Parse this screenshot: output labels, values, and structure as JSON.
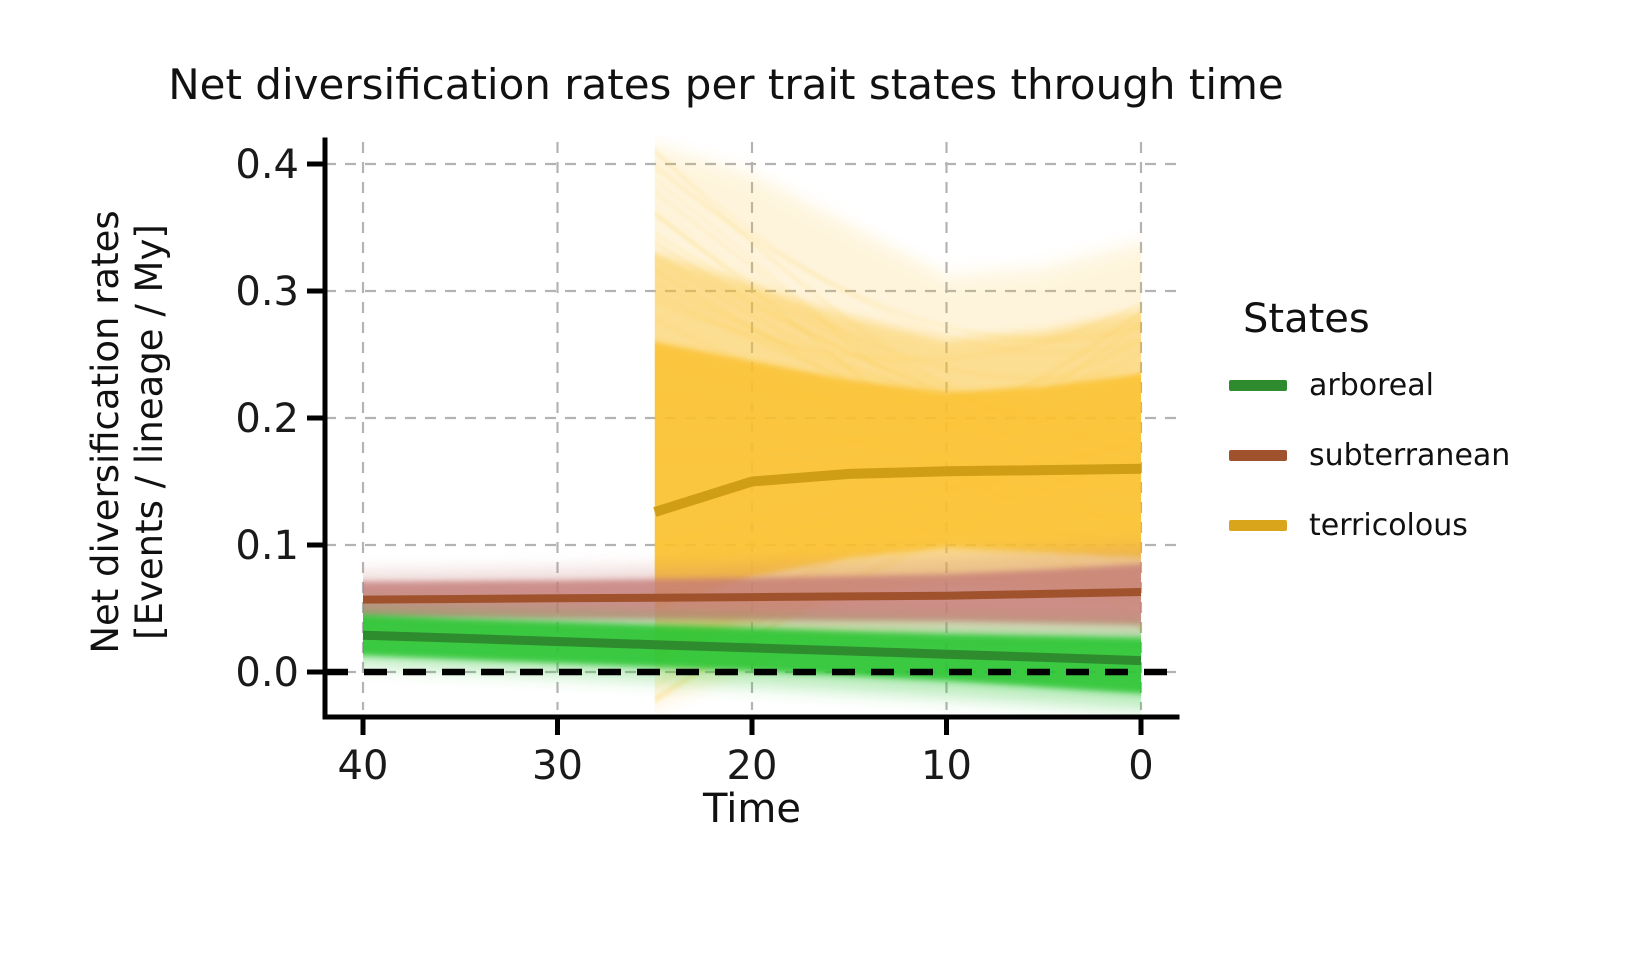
{
  "chart_data": {
    "type": "line",
    "title": "Net diversification rates per trait states through time",
    "xlabel": "Time",
    "ylabel": "Net diversification rates [Events / lineage / My]",
    "ylabel_lines": [
      "Net diversification rates",
      "[Events / lineage / My]"
    ],
    "x_axis": {
      "ticks": [
        40,
        30,
        20,
        10,
        0
      ],
      "tick_labels": [
        "40",
        "30",
        "20",
        "10",
        "0"
      ],
      "range": [
        40,
        0
      ],
      "reversed": true
    },
    "y_axis": {
      "ticks": [
        0.0,
        0.1,
        0.2,
        0.3,
        0.4
      ],
      "tick_labels": [
        "0.0",
        "0.1",
        "0.2",
        "0.3",
        "0.4"
      ],
      "range": [
        -0.035,
        0.419
      ]
    },
    "grid": {
      "show": true,
      "style": "dashed",
      "color": "#b3b3b3"
    },
    "zero_line": {
      "y": 0.0,
      "style": "dashed",
      "color": "#000000"
    },
    "legend": {
      "title": "States",
      "position": "right",
      "entries": [
        {
          "label": "arboreal",
          "color": "#2e8b2e"
        },
        {
          "label": "subterranean",
          "color": "#a0522d"
        },
        {
          "label": "terricolous",
          "color": "#d9a51b"
        }
      ]
    },
    "series": [
      {
        "name": "arboreal",
        "line_color": "#2e8b2e",
        "band_color": "#29c531",
        "line_width": 9,
        "x": [
          40,
          35,
          30,
          25,
          20,
          15,
          10,
          5,
          0
        ],
        "median": [
          0.029,
          0.0265,
          0.024,
          0.0215,
          0.019,
          0.0165,
          0.014,
          0.0115,
          0.009
        ],
        "bands": [
          {
            "level": "outer",
            "opacity": 0.35,
            "blur": "heavy",
            "low": [
              0.006,
              0.002,
              -0.002,
              -0.006,
              -0.01,
              -0.0145,
              -0.019,
              -0.024,
              -0.029
            ],
            "high": [
              0.051,
              0.048,
              0.0455,
              0.043,
              0.041,
              0.039,
              0.0375,
              0.036,
              0.035
            ]
          },
          {
            "level": "inner",
            "opacity": 0.88,
            "blur": "soft",
            "low": [
              0.013,
              0.01,
              0.007,
              0.004,
              0.001,
              -0.003,
              -0.007,
              -0.012,
              -0.017
            ],
            "high": [
              0.045,
              0.042,
              0.0395,
              0.037,
              0.0345,
              0.032,
              0.03,
              0.0285,
              0.027
            ]
          }
        ]
      },
      {
        "name": "subterranean",
        "line_color": "#a0522d",
        "band_color": "#c47b77",
        "line_width": 8,
        "x": [
          40,
          35,
          30,
          25,
          20,
          15,
          10,
          5,
          0
        ],
        "median": [
          0.057,
          0.0575,
          0.058,
          0.0585,
          0.059,
          0.0595,
          0.06,
          0.0615,
          0.063
        ],
        "bands": [
          {
            "level": "outer",
            "opacity": 0.3,
            "blur": "heavy",
            "low": [
              0.036,
              0.035,
              0.034,
              0.033,
              0.032,
              0.031,
              0.03,
              0.028,
              0.026
            ],
            "high": [
              0.078,
              0.079,
              0.08,
              0.082,
              0.084,
              0.087,
              0.09,
              0.094,
              0.098
            ]
          },
          {
            "level": "inner",
            "opacity": 0.78,
            "blur": "soft",
            "low": [
              0.043,
              0.0425,
              0.042,
              0.0415,
              0.041,
              0.0405,
              0.04,
              0.0385,
              0.037
            ],
            "high": [
              0.071,
              0.0715,
              0.072,
              0.073,
              0.074,
              0.0755,
              0.077,
              0.0805,
              0.085
            ]
          }
        ]
      },
      {
        "name": "terricolous",
        "line_color": "#cf9e14",
        "band_color": "#fbc12d",
        "streak_color": "#f8ba14",
        "line_width": 10,
        "x": [
          25,
          20,
          15,
          10,
          5,
          0
        ],
        "median": [
          0.126,
          0.15,
          0.156,
          0.158,
          0.159,
          0.16
        ],
        "bands": [
          {
            "level": "outer",
            "opacity": 0.16,
            "blur": "heavy",
            "low": [
              -0.028,
              0.004,
              0.024,
              0.034,
              0.034,
              0.034
            ],
            "high": [
              0.415,
              0.392,
              0.352,
              0.312,
              0.318,
              0.338
            ]
          },
          {
            "level": "mid",
            "opacity": 0.42,
            "blur": "medium",
            "low": [
              0.008,
              0.038,
              0.058,
              0.068,
              0.064,
              0.057
            ],
            "high": [
              0.33,
              0.305,
              0.28,
              0.262,
              0.268,
              0.285
            ]
          },
          {
            "level": "core",
            "opacity": 0.82,
            "blur": "soft",
            "low": [
              0.05,
              0.075,
              0.09,
              0.098,
              0.094,
              0.09
            ],
            "high": [
              0.26,
              0.245,
              0.23,
              0.22,
              0.225,
              0.235
            ]
          }
        ]
      }
    ]
  }
}
